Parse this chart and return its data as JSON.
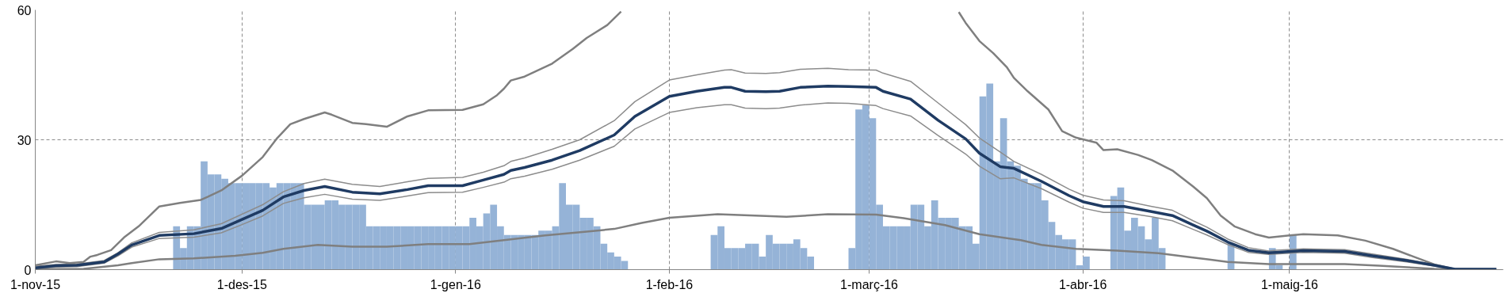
{
  "chart_data": {
    "type": "bar",
    "xlim": [
      "2015-11-01",
      "2016-06-01"
    ],
    "xticks": [
      {
        "value": "2015-11-01",
        "label": "1-nov-15"
      },
      {
        "value": "2015-12-01",
        "label": "1-des-15"
      },
      {
        "value": "2016-01-01",
        "label": "1-gen-16"
      },
      {
        "value": "2016-02-01",
        "label": "1-feb-16"
      },
      {
        "value": "2016-03-01",
        "label": "1-març-16"
      },
      {
        "value": "2016-04-01",
        "label": "1-abr-16"
      },
      {
        "value": "2016-05-01",
        "label": "1-maig-16"
      }
    ],
    "ylim": [
      0,
      60
    ],
    "yticks": [
      0,
      30,
      60
    ],
    "grid": true,
    "series": [
      {
        "color": "#95b3d7",
        "x": [
          "2015-11-21",
          "2015-11-22",
          "2015-11-23",
          "2015-11-24",
          "2015-11-25",
          "2015-11-26",
          "2015-11-27",
          "2015-11-28",
          "2015-11-29",
          "2015-11-30",
          "2015-12-01",
          "2015-12-02",
          "2015-12-03",
          "2015-12-04",
          "2015-12-05",
          "2015-12-06",
          "2015-12-07",
          "2015-12-08",
          "2015-12-09",
          "2015-12-10",
          "2015-12-11",
          "2015-12-12",
          "2015-12-13",
          "2015-12-14",
          "2015-12-15",
          "2015-12-16",
          "2015-12-17",
          "2015-12-18",
          "2015-12-19",
          "2015-12-20",
          "2015-12-21",
          "2015-12-22",
          "2015-12-23",
          "2015-12-24",
          "2015-12-25",
          "2015-12-26",
          "2015-12-27",
          "2015-12-28",
          "2015-12-29",
          "2015-12-30",
          "2015-12-31",
          "2016-01-01",
          "2016-01-02",
          "2016-01-03",
          "2016-01-04",
          "2016-01-05",
          "2016-01-06",
          "2016-01-07",
          "2016-01-08",
          "2016-01-09",
          "2016-01-10",
          "2016-01-11",
          "2016-01-12",
          "2016-01-13",
          "2016-01-14",
          "2016-01-15",
          "2016-01-16",
          "2016-01-17",
          "2016-01-18",
          "2016-01-19",
          "2016-01-20",
          "2016-01-21",
          "2016-01-22",
          "2016-01-23",
          "2016-01-24",
          "2016-01-25",
          "2016-02-07",
          "2016-02-08",
          "2016-02-09",
          "2016-02-10",
          "2016-02-11",
          "2016-02-12",
          "2016-02-13",
          "2016-02-14",
          "2016-02-15",
          "2016-02-16",
          "2016-02-17",
          "2016-02-18",
          "2016-02-19",
          "2016-02-20",
          "2016-02-21",
          "2016-02-27",
          "2016-02-28",
          "2016-02-29",
          "2016-03-01",
          "2016-03-02",
          "2016-03-03",
          "2016-03-04",
          "2016-03-05",
          "2016-03-06",
          "2016-03-07",
          "2016-03-08",
          "2016-03-09",
          "2016-03-10",
          "2016-03-11",
          "2016-03-12",
          "2016-03-13",
          "2016-03-14",
          "2016-03-15",
          "2016-03-16",
          "2016-03-17",
          "2016-03-18",
          "2016-03-19",
          "2016-03-20",
          "2016-03-21",
          "2016-03-22",
          "2016-03-23",
          "2016-03-24",
          "2016-03-25",
          "2016-03-26",
          "2016-03-27",
          "2016-03-28",
          "2016-03-29",
          "2016-03-30",
          "2016-03-31",
          "2016-04-01",
          "2016-04-05",
          "2016-04-06",
          "2016-04-07",
          "2016-04-08",
          "2016-04-09",
          "2016-04-10",
          "2016-04-11",
          "2016-04-12",
          "2016-04-22",
          "2016-04-28",
          "2016-04-29",
          "2016-05-01"
        ],
        "values": [
          10,
          5,
          10,
          10,
          25,
          22,
          22,
          21,
          20,
          20,
          20,
          20,
          20,
          20,
          19,
          20,
          20,
          20,
          20,
          15,
          15,
          15,
          16,
          16,
          15,
          15,
          15,
          15,
          10,
          10,
          10,
          10,
          10,
          10,
          10,
          10,
          10,
          10,
          10,
          10,
          10,
          10,
          10,
          12,
          10,
          13,
          15,
          10,
          8,
          8,
          8,
          8,
          8,
          9,
          9,
          10,
          20,
          15,
          15,
          12,
          12,
          10,
          6,
          4,
          3,
          2,
          8,
          10,
          5,
          5,
          5,
          6,
          6,
          3,
          8,
          6,
          6,
          6,
          7,
          5,
          3,
          5,
          37,
          38,
          35,
          15,
          10,
          10,
          10,
          10,
          15,
          15,
          10,
          16,
          12,
          12,
          12,
          10,
          10,
          6,
          40,
          43,
          25,
          35,
          25,
          24,
          21,
          20,
          20,
          16,
          11,
          8,
          7,
          7,
          1,
          3,
          17,
          19,
          9,
          12,
          10,
          7,
          12,
          5,
          6,
          5,
          1,
          8
        ]
      },
      {
        "type": "line",
        "color": "#7f7f7f",
        "x": [
          "2015-11-01",
          "2015-11-04",
          "2015-11-06",
          "2015-11-08",
          "2015-11-09",
          "2015-11-10",
          "2015-11-12",
          "2015-11-14",
          "2015-11-16",
          "2015-11-19",
          "2015-11-22",
          "2015-11-25",
          "2015-11-26",
          "2015-11-28",
          "2015-12-01",
          "2015-12-04",
          "2015-12-06",
          "2015-12-08",
          "2015-12-10",
          "2015-12-13",
          "2015-12-14",
          "2015-12-17",
          "2015-12-19",
          "2015-12-22",
          "2015-12-25",
          "2015-12-28",
          "2016-01-02",
          "2016-01-05",
          "2016-01-07",
          "2016-01-08",
          "2016-01-09",
          "2016-01-11",
          "2016-01-15",
          "2016-01-18",
          "2016-01-20",
          "2016-01-23",
          "2016-01-25",
          "2016-02-09",
          "2016-03-14",
          "2016-03-15",
          "2016-03-17",
          "2016-03-19",
          "2016-03-21",
          "2016-03-22",
          "2016-03-24",
          "2016-03-27",
          "2016-03-29",
          "2016-03-31",
          "2016-04-03",
          "2016-04-04",
          "2016-04-06",
          "2016-04-09",
          "2016-04-11",
          "2016-04-14",
          "2016-04-17",
          "2016-04-19",
          "2016-04-21",
          "2016-04-23",
          "2016-04-26",
          "2016-04-28",
          "2016-05-01",
          "2016-05-03",
          "2016-05-08",
          "2016-05-12",
          "2016-05-16",
          "2016-05-19",
          "2016-05-22",
          "2016-05-25",
          "2016-05-31"
        ],
        "values": [
          1,
          1.9,
          1.5,
          1.8,
          3,
          3.4,
          4.5,
          7.6,
          10,
          14.6,
          15.4,
          16.1,
          16.8,
          18.3,
          21.7,
          26,
          30.2,
          33.6,
          34.8,
          36.3,
          35.8,
          33.9,
          33.6,
          33,
          35.4,
          36.8,
          36.9,
          38.2,
          40.3,
          41.8,
          43.7,
          44.6,
          47.6,
          51,
          53.5,
          56.5,
          59.6,
          null,
          59.5,
          57,
          52.8,
          50,
          46.7,
          44.3,
          41.2,
          37,
          32,
          30.5,
          29.3,
          27.6,
          27.8,
          26.5,
          25.3,
          22.9,
          19.2,
          16.5,
          12.5,
          10,
          8.2,
          7.4,
          7.9,
          8.2,
          7.9,
          6.7,
          4.8,
          3,
          1.2,
          0.1,
          0.1
        ]
      },
      {
        "type": "line",
        "color": "#8c8c8c",
        "x": [
          "2015-11-01",
          "2015-11-04",
          "2015-11-07",
          "2015-11-11",
          "2015-11-13",
          "2015-11-15",
          "2015-11-19",
          "2015-11-24",
          "2015-11-28",
          "2015-12-01",
          "2015-12-04",
          "2015-12-07",
          "2015-12-10",
          "2015-12-13",
          "2015-12-17",
          "2015-12-21",
          "2015-12-25",
          "2015-12-28",
          "2016-01-02",
          "2016-01-05",
          "2016-01-08",
          "2016-01-09",
          "2016-01-11",
          "2016-01-15",
          "2016-01-19",
          "2016-01-24",
          "2016-01-27",
          "2016-02-01",
          "2016-02-05",
          "2016-02-09",
          "2016-02-10",
          "2016-02-12",
          "2016-02-15",
          "2016-02-17",
          "2016-02-20",
          "2016-02-24",
          "2016-02-27",
          "2016-03-02",
          "2016-03-03",
          "2016-03-07",
          "2016-03-11",
          "2016-03-15",
          "2016-03-17",
          "2016-03-20",
          "2016-03-22",
          "2016-03-26",
          "2016-03-30",
          "2016-04-01",
          "2016-04-04",
          "2016-04-07",
          "2016-04-11",
          "2016-04-14",
          "2016-04-17",
          "2016-04-19",
          "2016-04-22",
          "2016-04-25",
          "2016-04-28",
          "2016-04-29",
          "2016-05-03",
          "2016-05-09",
          "2016-05-13",
          "2016-05-18",
          "2016-05-22",
          "2016-05-25",
          "2016-05-31"
        ],
        "values": [
          0.8,
          1.2,
          1.3,
          2.1,
          3.9,
          6.2,
          8.6,
          9.2,
          10.6,
          12.8,
          15,
          18,
          19.9,
          20.9,
          19.7,
          19.2,
          20.3,
          21.1,
          21.3,
          22.5,
          24,
          25,
          25.8,
          27.8,
          30,
          34.4,
          38.8,
          43.8,
          45,
          46.1,
          46.2,
          45.4,
          45.3,
          45.5,
          46.3,
          46.5,
          46.2,
          46.1,
          45.4,
          43.5,
          38.5,
          33.5,
          30.4,
          27.2,
          25,
          22,
          18.6,
          17.2,
          16.1,
          15.9,
          14.6,
          13.7,
          11.3,
          9.8,
          7.1,
          5.1,
          4.3,
          4.5,
          4.8,
          4.6,
          3.6,
          2.4,
          1.1,
          0.1,
          0.1
        ]
      },
      {
        "type": "line",
        "color": "#8c8c8c",
        "x": [
          "2015-11-01",
          "2015-11-04",
          "2015-11-07",
          "2015-11-11",
          "2015-11-13",
          "2015-11-15",
          "2015-11-19",
          "2015-11-24",
          "2015-11-28",
          "2015-12-01",
          "2015-12-04",
          "2015-12-07",
          "2015-12-10",
          "2015-12-13",
          "2015-12-17",
          "2015-12-21",
          "2015-12-25",
          "2015-12-28",
          "2016-01-02",
          "2016-01-05",
          "2016-01-08",
          "2016-01-09",
          "2016-01-11",
          "2016-01-15",
          "2016-01-19",
          "2016-01-24",
          "2016-01-27",
          "2016-02-01",
          "2016-02-05",
          "2016-02-09",
          "2016-02-10",
          "2016-02-12",
          "2016-02-15",
          "2016-02-17",
          "2016-02-20",
          "2016-02-24",
          "2016-02-27",
          "2016-03-02",
          "2016-03-03",
          "2016-03-07",
          "2016-03-11",
          "2016-03-15",
          "2016-03-17",
          "2016-03-20",
          "2016-03-22",
          "2016-03-26",
          "2016-03-30",
          "2016-04-01",
          "2016-04-04",
          "2016-04-07",
          "2016-04-11",
          "2016-04-14",
          "2016-04-17",
          "2016-04-19",
          "2016-04-22",
          "2016-04-25",
          "2016-04-28",
          "2016-04-29",
          "2016-05-03",
          "2016-05-09",
          "2016-05-13",
          "2016-05-18",
          "2016-05-22",
          "2016-05-25",
          "2016-05-31"
        ],
        "values": [
          0.2,
          0.6,
          0.7,
          1.5,
          3.2,
          5.2,
          7.2,
          7.5,
          8.5,
          10.4,
          12.4,
          15.3,
          16.6,
          17.4,
          16.3,
          16,
          17,
          17.8,
          17.9,
          19,
          20.2,
          21,
          21.6,
          23.2,
          25.3,
          28.5,
          32.5,
          36.3,
          37.4,
          38.1,
          38.1,
          37.3,
          37.2,
          37.3,
          38,
          38.5,
          38.4,
          37.9,
          37.2,
          35.5,
          31,
          26.7,
          23.9,
          21,
          21.2,
          18.7,
          15.6,
          14.2,
          13.2,
          13.2,
          12.2,
          11.3,
          9.3,
          8,
          5.8,
          4,
          3.5,
          3.6,
          4,
          3.8,
          2.8,
          1.8,
          0.8,
          0.1,
          0.1
        ]
      },
      {
        "type": "line",
        "color": "#7f7f7f",
        "x": [
          "2015-11-01",
          "2015-11-08",
          "2015-11-13",
          "2015-11-15",
          "2015-11-19",
          "2015-11-24",
          "2015-11-30",
          "2015-12-04",
          "2015-12-07",
          "2015-12-12",
          "2015-12-17",
          "2015-12-22",
          "2015-12-28",
          "2016-01-03",
          "2016-01-09",
          "2016-01-14",
          "2016-01-20",
          "2016-01-24",
          "2016-01-28",
          "2016-02-01",
          "2016-02-08",
          "2016-02-15",
          "2016-02-18",
          "2016-02-24",
          "2016-03-02",
          "2016-03-06",
          "2016-03-12",
          "2016-03-17",
          "2016-03-23",
          "2016-03-26",
          "2016-03-31",
          "2016-04-06",
          "2016-04-12",
          "2016-04-17",
          "2016-04-22",
          "2016-04-28",
          "2016-05-09",
          "2016-05-14",
          "2016-05-22",
          "2016-05-31"
        ],
        "values": [
          0.1,
          0.2,
          1,
          1.5,
          2.4,
          2.6,
          3.2,
          3.9,
          4.8,
          5.7,
          5.3,
          5.3,
          5.9,
          5.9,
          7,
          7.9,
          8.8,
          9.4,
          10.8,
          12,
          12.8,
          12.4,
          12.2,
          12.8,
          12.7,
          11.9,
          10.3,
          8.2,
          6.8,
          5.7,
          4.8,
          4.4,
          3.8,
          2.8,
          1.8,
          1.3,
          1.3,
          0.9,
          0.2,
          0.1
        ]
      },
      {
        "type": "line",
        "color": "#1f3b63",
        "x": [
          "2015-11-01",
          "2015-11-04",
          "2015-11-07",
          "2015-11-11",
          "2015-11-13",
          "2015-11-15",
          "2015-11-19",
          "2015-11-24",
          "2015-11-28",
          "2015-12-01",
          "2015-12-04",
          "2015-12-07",
          "2015-12-10",
          "2015-12-13",
          "2015-12-17",
          "2015-12-21",
          "2015-12-25",
          "2015-12-28",
          "2016-01-02",
          "2016-01-05",
          "2016-01-08",
          "2016-01-09",
          "2016-01-11",
          "2016-01-15",
          "2016-01-19",
          "2016-01-24",
          "2016-01-27",
          "2016-02-01",
          "2016-02-05",
          "2016-02-09",
          "2016-02-10",
          "2016-02-12",
          "2016-02-15",
          "2016-02-17",
          "2016-02-20",
          "2016-02-24",
          "2016-02-27",
          "2016-03-02",
          "2016-03-03",
          "2016-03-07",
          "2016-03-11",
          "2016-03-15",
          "2016-03-17",
          "2016-03-20",
          "2016-03-22",
          "2016-03-26",
          "2016-03-30",
          "2016-04-01",
          "2016-04-04",
          "2016-04-07",
          "2016-04-11",
          "2016-04-14",
          "2016-04-17",
          "2016-04-19",
          "2016-04-22",
          "2016-04-25",
          "2016-04-28",
          "2016-04-29",
          "2016-05-03",
          "2016-05-09",
          "2016-05-13",
          "2016-05-18",
          "2016-05-22",
          "2016-05-25",
          "2016-05-31"
        ],
        "values": [
          0.4,
          0.9,
          1,
          1.8,
          3.6,
          5.7,
          7.9,
          8.3,
          9.5,
          11.6,
          13.7,
          16.8,
          18.3,
          19.2,
          17.9,
          17.5,
          18.5,
          19.4,
          19.4,
          20.7,
          22,
          22.9,
          23.6,
          25.3,
          27.5,
          31.1,
          35.4,
          40,
          41.2,
          42.1,
          42.1,
          41.2,
          41.1,
          41.2,
          42.1,
          42.4,
          42.3,
          42.1,
          41.2,
          39.4,
          34.5,
          30.2,
          26.9,
          23.8,
          23.4,
          20.4,
          17.1,
          15.7,
          14.6,
          14.6,
          13.4,
          12.5,
          10.3,
          8.9,
          6.4,
          4.5,
          3.9,
          4,
          4.4,
          4.2,
          3.2,
          2.1,
          1,
          0.1,
          0.1
        ]
      }
    ]
  }
}
